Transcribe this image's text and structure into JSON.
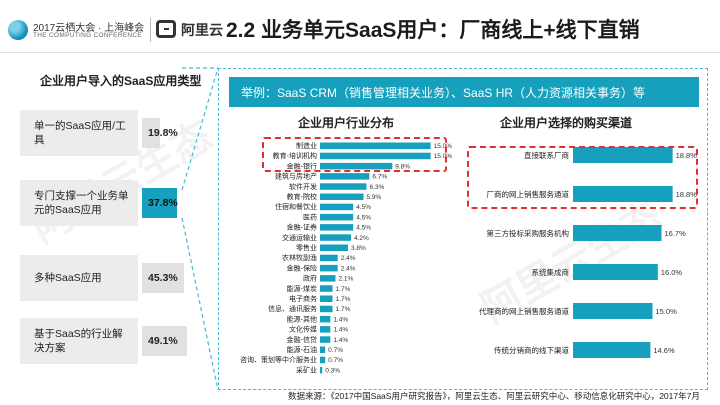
{
  "header": {
    "logo1_line1": "2017云栖大会 · 上海峰会",
    "logo1_line2": "THE COMPUTING CONFERENCE",
    "logo2_text": "阿里云",
    "title": "2.2 业务单元SaaS用户：厂商线上+线下直销"
  },
  "colors": {
    "accent": "#17a0bd",
    "gray_bar": "#e1e1e1",
    "highlight_border": "#e03030"
  },
  "left_panel": {
    "title": "企业用户导入的SaaS应用类型",
    "items": [
      {
        "label": "单一的SaaS应用/工具",
        "value": "19.8%",
        "pct": 19.8,
        "highlight": false
      },
      {
        "label": "专门支撑一个业务单元的SaaS应用",
        "value": "37.8%",
        "pct": 37.8,
        "highlight": true
      },
      {
        "label": "多种SaaS应用",
        "value": "45.3%",
        "pct": 45.3,
        "highlight": false
      },
      {
        "label": "基于SaaS的行业解决方案",
        "value": "49.1%",
        "pct": 49.1,
        "highlight": false
      }
    ]
  },
  "example_text": "举例：SaaS CRM（销售管理相关业务）、SaaS HR（人力资源相关事务）等",
  "chart_data": [
    {
      "type": "bar",
      "orientation": "horizontal",
      "title": "企业用户行业分布",
      "categories": [
        "制造业",
        "教育-培训机构",
        "金融-银行",
        "建筑与房地产",
        "软件开发",
        "教育-院校",
        "住宿和餐饮业",
        "医药",
        "金融-证券",
        "交通运输业",
        "零售业",
        "农林牧副渔",
        "金融-保险",
        "政府",
        "能源-煤炭",
        "电子商务",
        "信息、通讯服务",
        "能源-其他",
        "文化传媒",
        "金融-信贷",
        "能源-石油",
        "咨询、策划等中介服务业",
        "采矿业"
      ],
      "values": [
        15.0,
        15.0,
        9.8,
        6.7,
        6.3,
        5.9,
        4.5,
        4.5,
        4.5,
        4.2,
        3.8,
        2.4,
        2.4,
        2.1,
        1.7,
        1.7,
        1.7,
        1.4,
        1.4,
        1.4,
        0.7,
        0.7,
        0.3
      ],
      "value_labels": [
        "15.0%",
        "15.0%",
        "9.8%",
        "6.7%",
        "6.3%",
        "5.9%",
        "4.5%",
        "4.5%",
        "4.5%",
        "4.2%",
        "3.8%",
        "2.4%",
        "2.4%",
        "2.1%",
        "1.7%",
        "1.7%",
        "1.7%",
        "1.4%",
        "1.4%",
        "1.4%",
        "0.7%",
        "0.7%",
        "0.3%"
      ],
      "highlighted": [
        0,
        1
      ],
      "xlim": [
        0,
        16
      ]
    },
    {
      "type": "bar",
      "orientation": "horizontal",
      "title": "企业用户选择的购买渠道",
      "categories": [
        "直接联系厂商",
        "厂商的网上销售服务通道",
        "第三方投标采购服务机构",
        "系统集成商",
        "代理商的网上销售服务通道",
        "传统分销商的线下渠道"
      ],
      "values": [
        18.8,
        18.8,
        16.7,
        16.0,
        15.0,
        14.6
      ],
      "value_labels": [
        "18.8%",
        "18.8%",
        "16.7%",
        "16.0%",
        "15.0%",
        "14.6%"
      ],
      "highlighted": [
        0,
        1
      ],
      "xlim": [
        0,
        20
      ]
    }
  ],
  "footer": "数据来源：《2017中国SaaS用户研究报告》，阿里云生态、阿里云研究中心、移动信息化研究中心，2017年7月"
}
